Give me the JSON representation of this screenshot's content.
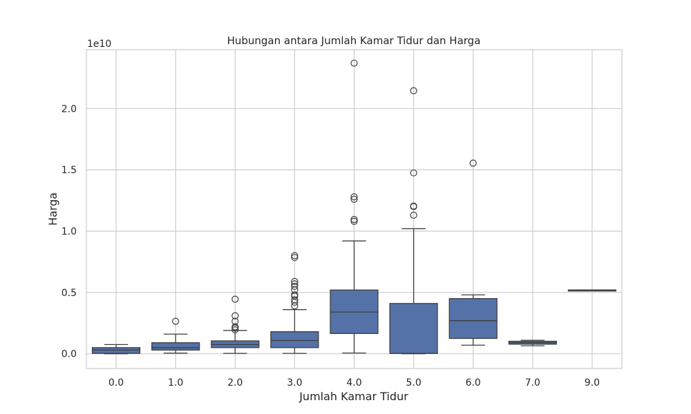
{
  "chart_data": {
    "type": "box",
    "title": "Hubungan antara Jumlah Kamar Tidur dan Harga",
    "xlabel": "Jumlah Kamar Tidur",
    "ylabel": "Harga",
    "y_offset_label": "1e10",
    "y_scale_note": "values in units of 1e10",
    "ylim": [
      -0.12,
      2.48
    ],
    "yticks": [
      0.0,
      0.5,
      1.0,
      1.5,
      2.0
    ],
    "ytick_labels": [
      "0.0",
      "0.5",
      "1.0",
      "1.5",
      "2.0"
    ],
    "grid": true,
    "box_color": "#5572a8",
    "edge_color": "#3d3d3d",
    "categories": [
      "0.0",
      "1.0",
      "2.0",
      "3.0",
      "4.0",
      "5.0",
      "6.0",
      "7.0",
      "9.0"
    ],
    "boxes": [
      {
        "category": "0.0",
        "whisker_low": 0.0,
        "q1": 0.003,
        "median": 0.03,
        "q3": 0.05,
        "whisker_high": 0.075,
        "outliers": []
      },
      {
        "category": "1.0",
        "whisker_low": 0.005,
        "q1": 0.03,
        "median": 0.05,
        "q3": 0.09,
        "whisker_high": 0.16,
        "outliers": [
          0.265
        ]
      },
      {
        "category": "2.0",
        "whisker_low": 0.003,
        "q1": 0.05,
        "median": 0.075,
        "q3": 0.105,
        "whisker_high": 0.19,
        "outliers": [
          0.195,
          0.21,
          0.22,
          0.265,
          0.31,
          0.445
        ]
      },
      {
        "category": "3.0",
        "whisker_low": 0.003,
        "q1": 0.05,
        "median": 0.108,
        "q3": 0.18,
        "whisker_high": 0.36,
        "outliers": [
          0.39,
          0.42,
          0.44,
          0.47,
          0.48,
          0.52,
          0.55,
          0.57,
          0.59,
          0.785,
          0.8
        ]
      },
      {
        "category": "4.0",
        "whisker_low": 0.006,
        "q1": 0.165,
        "median": 0.34,
        "q3": 0.52,
        "whisker_high": 0.92,
        "outliers": [
          1.08,
          1.095,
          1.26,
          1.28,
          2.37
        ]
      },
      {
        "category": "5.0",
        "whisker_low": 0.0,
        "q1": 0.003,
        "median": 0.003,
        "q3": 0.41,
        "whisker_high": 1.02,
        "outliers": [
          1.13,
          1.2,
          1.205,
          1.475,
          2.145
        ]
      },
      {
        "category": "6.0",
        "whisker_low": 0.07,
        "q1": 0.125,
        "median": 0.27,
        "q3": 0.45,
        "whisker_high": 0.48,
        "outliers": [
          1.555
        ]
      },
      {
        "category": "7.0",
        "whisker_low": 0.065,
        "q1": 0.078,
        "median": 0.09,
        "q3": 0.102,
        "whisker_high": 0.11,
        "outliers": []
      },
      {
        "category": "9.0",
        "whisker_low": 0.52,
        "q1": 0.52,
        "median": 0.52,
        "q3": 0.52,
        "whisker_high": 0.52,
        "outliers": []
      }
    ]
  }
}
